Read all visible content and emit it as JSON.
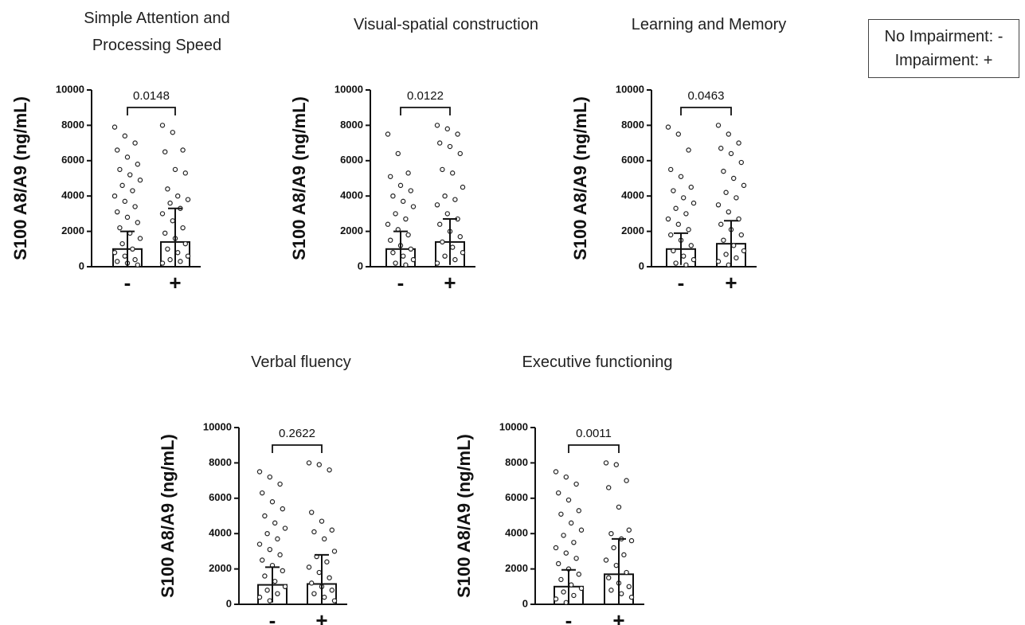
{
  "legend": [
    "No Impairment: -",
    "Impairment: +"
  ],
  "chart_data": [
    {
      "type": "bar",
      "title": "Simple Attention and Processing Speed",
      "ylabel": "S100 A8/A9 (ng/mL)",
      "annotation": "0.0148",
      "categories": [
        "-",
        "+"
      ],
      "values": [
        1000,
        1400
      ],
      "errors": [
        1000,
        1900
      ],
      "points": [
        [
          7900,
          7400,
          7000,
          6600,
          6200,
          5800,
          5500,
          5200,
          4900,
          4600,
          4300,
          4000,
          3700,
          3400,
          3100,
          2800,
          2500,
          2200,
          1900,
          1600,
          1300,
          1000,
          800,
          600,
          400,
          300,
          200,
          100
        ],
        [
          8000,
          7600,
          6600,
          6500,
          5500,
          5300,
          4400,
          4000,
          3800,
          3600,
          3300,
          3000,
          2600,
          2200,
          1900,
          1600,
          1300,
          1000,
          800,
          600,
          400,
          300,
          200
        ]
      ],
      "ylim": [
        0,
        10000
      ],
      "yticks": [
        0,
        2000,
        4000,
        6000,
        8000,
        10000
      ]
    },
    {
      "type": "bar",
      "title": "Visual-spatial construction",
      "ylabel": "S100 A8/A9 (ng/mL)",
      "annotation": "0.0122",
      "categories": [
        "-",
        "+"
      ],
      "values": [
        1000,
        1400
      ],
      "errors": [
        1000,
        1300
      ],
      "points": [
        [
          7500,
          6400,
          5300,
          5100,
          4600,
          4300,
          4000,
          3700,
          3400,
          3000,
          2700,
          2400,
          2100,
          1800,
          1500,
          1200,
          1000,
          800,
          600,
          400,
          200,
          100
        ],
        [
          8000,
          7800,
          7500,
          7000,
          6800,
          6400,
          5500,
          5300,
          4500,
          4000,
          3800,
          3500,
          3000,
          2700,
          2400,
          2000,
          1700,
          1400,
          1100,
          800,
          600,
          400,
          200
        ]
      ],
      "ylim": [
        0,
        10000
      ],
      "yticks": [
        0,
        2000,
        4000,
        6000,
        8000,
        10000
      ]
    },
    {
      "type": "bar",
      "title": "Learning and Memory",
      "ylabel": "S100 A8/A9 (ng/mL)",
      "annotation": "0.0463",
      "categories": [
        "-",
        "+"
      ],
      "values": [
        1000,
        1300
      ],
      "errors": [
        900,
        1300
      ],
      "points": [
        [
          7900,
          7500,
          6600,
          5500,
          5100,
          4500,
          4300,
          3900,
          3600,
          3300,
          3000,
          2700,
          2400,
          2100,
          1800,
          1500,
          1200,
          900,
          600,
          400,
          200,
          100
        ],
        [
          8000,
          7500,
          7000,
          6700,
          6400,
          5900,
          5400,
          5000,
          4600,
          4200,
          3900,
          3500,
          3100,
          2700,
          2400,
          2100,
          1800,
          1500,
          1200,
          900,
          700,
          500,
          300,
          100
        ]
      ],
      "ylim": [
        0,
        10000
      ],
      "yticks": [
        0,
        2000,
        4000,
        6000,
        8000,
        10000
      ]
    },
    {
      "type": "bar",
      "title": "Verbal fluency",
      "ylabel": "S100 A8/A9 (ng/mL)",
      "annotation": "0.2622",
      "categories": [
        "-",
        "+"
      ],
      "values": [
        1100,
        1150
      ],
      "errors": [
        1000,
        1650
      ],
      "points": [
        [
          7500,
          7200,
          6800,
          6300,
          5800,
          5400,
          5000,
          4600,
          4300,
          4000,
          3700,
          3400,
          3100,
          2800,
          2500,
          2200,
          1900,
          1600,
          1300,
          1000,
          800,
          600,
          400,
          200
        ],
        [
          8000,
          7900,
          7600,
          5200,
          4700,
          4200,
          4100,
          3700,
          3000,
          2700,
          2400,
          2100,
          1800,
          1500,
          1200,
          1000,
          800,
          600,
          400,
          200
        ]
      ],
      "ylim": [
        0,
        10000
      ],
      "yticks": [
        0,
        2000,
        4000,
        6000,
        8000,
        10000
      ]
    },
    {
      "type": "bar",
      "title": "Executive functioning",
      "ylabel": "S100 A8/A9 (ng/mL)",
      "annotation": "0.0011",
      "categories": [
        "-",
        "+"
      ],
      "values": [
        1000,
        1700
      ],
      "errors": [
        950,
        2000
      ],
      "points": [
        [
          7500,
          7200,
          6800,
          6300,
          5900,
          5300,
          5100,
          4600,
          4200,
          3900,
          3500,
          3200,
          2900,
          2600,
          2300,
          2000,
          1700,
          1400,
          1100,
          900,
          700,
          500,
          300,
          100
        ],
        [
          8000,
          7900,
          7000,
          6600,
          5500,
          4200,
          4000,
          3700,
          3600,
          3200,
          2800,
          2500,
          2200,
          1800,
          1500,
          1200,
          1000,
          800,
          600,
          400
        ]
      ],
      "ylim": [
        0,
        10000
      ],
      "yticks": [
        0,
        2000,
        4000,
        6000,
        8000,
        10000
      ]
    }
  ]
}
